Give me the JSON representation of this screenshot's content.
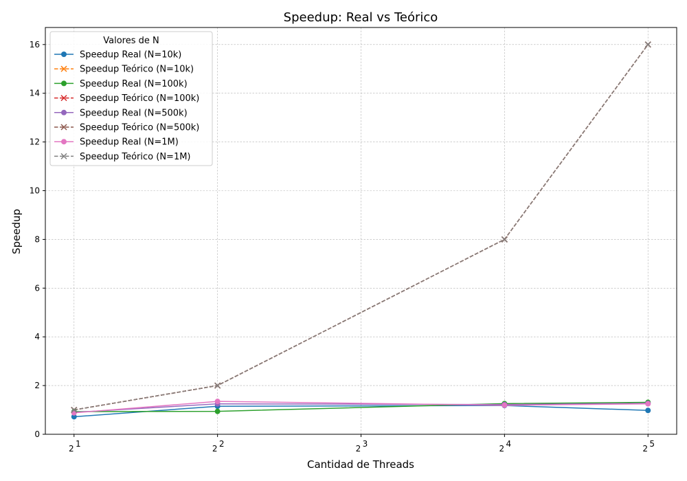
{
  "chart_data": {
    "type": "line",
    "title": "Speedup: Real vs Teórico",
    "xlabel": "Cantidad de Threads",
    "ylabel": "Speedup",
    "x_scale": "log2",
    "x": [
      2,
      4,
      16,
      32
    ],
    "x_ticks": [
      2,
      4,
      8,
      16,
      32
    ],
    "x_tick_base": "2",
    "x_tick_exponents": [
      "1",
      "2",
      "3",
      "4",
      "5"
    ],
    "ylim": [
      0,
      16.7
    ],
    "y_ticks": [
      0,
      2,
      4,
      6,
      8,
      10,
      12,
      14,
      16
    ],
    "grid": true,
    "legend": {
      "title": "Valores de N",
      "placement": "top-left"
    },
    "series": [
      {
        "name": "Speedup Real (N=10k)",
        "values": [
          0.72,
          1.15,
          1.18,
          0.98
        ],
        "color": "#1f77b4",
        "dashed": false,
        "marker": "circle"
      },
      {
        "name": "Speedup Teórico (N=10k)",
        "values": [
          1,
          2,
          8,
          16
        ],
        "color": "#ff7f0e",
        "dashed": true,
        "marker": "x"
      },
      {
        "name": "Speedup Real (N=100k)",
        "values": [
          0.93,
          0.94,
          1.26,
          1.31
        ],
        "color": "#2ca02c",
        "dashed": false,
        "marker": "circle"
      },
      {
        "name": "Speedup Teórico (N=100k)",
        "values": [
          1,
          2,
          8,
          16
        ],
        "color": "#d62728",
        "dashed": true,
        "marker": "x"
      },
      {
        "name": "Speedup Real (N=500k)",
        "values": [
          0.9,
          1.25,
          1.22,
          1.27
        ],
        "color": "#9467bd",
        "dashed": false,
        "marker": "circle"
      },
      {
        "name": "Speedup Teórico (N=500k)",
        "values": [
          1,
          2,
          8,
          16
        ],
        "color": "#8c564b",
        "dashed": true,
        "marker": "x"
      },
      {
        "name": "Speedup Real (N=1M)",
        "values": [
          0.88,
          1.35,
          1.19,
          1.25
        ],
        "color": "#e377c2",
        "dashed": false,
        "marker": "circle"
      },
      {
        "name": "Speedup Teórico (N=1M)",
        "values": [
          1,
          2,
          8,
          16
        ],
        "color": "#7f7f7f",
        "dashed": true,
        "marker": "x"
      }
    ]
  }
}
